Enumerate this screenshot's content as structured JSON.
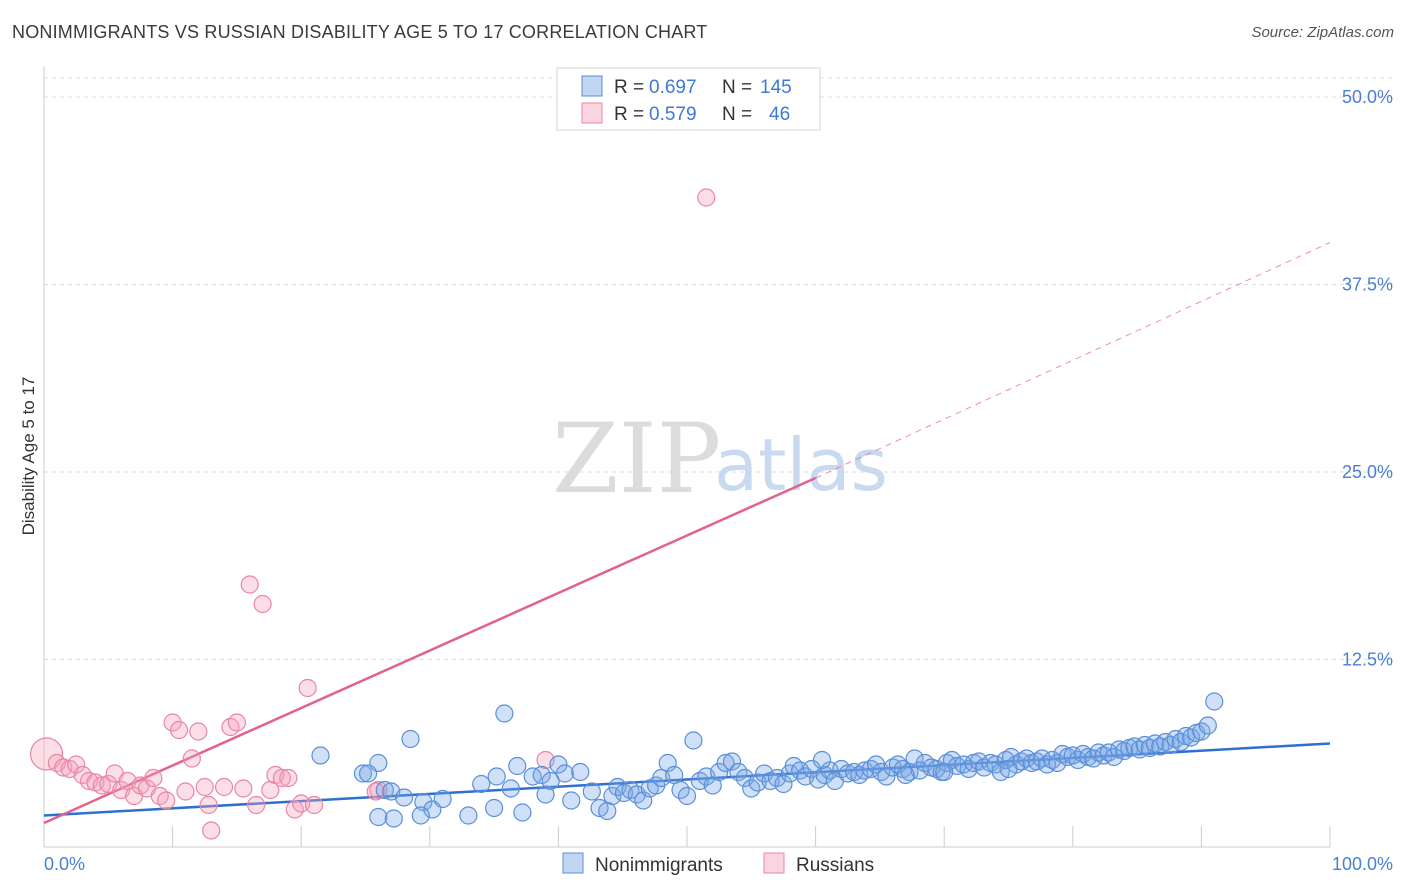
{
  "title": "NONIMMIGRANTS VS RUSSIAN DISABILITY AGE 5 TO 17 CORRELATION CHART",
  "source": "Source: ZipAtlas.com",
  "watermark": {
    "zip": "ZIP",
    "atlas": "atlas"
  },
  "colors": {
    "blue_fill": "rgba(120,165,230,0.35)",
    "blue_stroke": "#5a8fd8",
    "blue_line": "#2f6fd0",
    "pink_fill": "rgba(245,160,185,0.35)",
    "pink_stroke": "#e886a6",
    "pink_line": "#e2628c",
    "tick_text": "#4a7fd4",
    "grid": "#dddddd"
  },
  "legend": {
    "rows": [
      {
        "r_label": "R =",
        "r_value": "0.697",
        "n_label": "N =",
        "n_value": "145",
        "series": "blue"
      },
      {
        "r_label": "R =",
        "r_value": "0.579",
        "n_label": "N =",
        "n_value": "46",
        "series": "pink"
      }
    ]
  },
  "bottom_legend": {
    "items": [
      "Nonimmigrants",
      "Russians"
    ]
  },
  "chart_data": {
    "type": "scatter",
    "title": "NONIMMIGRANTS VS RUSSIAN DISABILITY AGE 5 TO 17 CORRELATION CHART",
    "xlabel": "",
    "ylabel": "Disability Age 5 to 17",
    "xlim": [
      0,
      100
    ],
    "ylim": [
      0,
      52
    ],
    "x_tick_labels": [
      "0.0%",
      "100.0%"
    ],
    "y_ticks": [
      12.5,
      25.0,
      37.5,
      50.0
    ],
    "y_tick_labels": [
      "12.5%",
      "25.0%",
      "37.5%",
      "50.0%"
    ],
    "grid": true,
    "legend_position": "top-center",
    "series": [
      {
        "name": "Nonimmigrants",
        "color": "blue",
        "r": 0.697,
        "n": 145,
        "trend": {
          "x": [
            0,
            100
          ],
          "y": [
            2.1,
            6.9
          ]
        },
        "points": [
          [
            21.5,
            6.1
          ],
          [
            24.8,
            4.9
          ],
          [
            25.2,
            4.9
          ],
          [
            26.0,
            5.6
          ],
          [
            26.5,
            3.8
          ],
          [
            27.0,
            3.7
          ],
          [
            28.0,
            3.3
          ],
          [
            28.5,
            7.2
          ],
          [
            29.5,
            3.0
          ],
          [
            30.2,
            2.5
          ],
          [
            31.0,
            3.2
          ],
          [
            26.0,
            2.0
          ],
          [
            27.2,
            1.9
          ],
          [
            29.3,
            2.1
          ],
          [
            33.0,
            2.1
          ],
          [
            34.0,
            4.2
          ],
          [
            35.0,
            2.6
          ],
          [
            35.2,
            4.7
          ],
          [
            35.8,
            8.9
          ],
          [
            36.3,
            3.9
          ],
          [
            36.8,
            5.4
          ],
          [
            37.2,
            2.3
          ],
          [
            38.0,
            4.7
          ],
          [
            38.7,
            4.8
          ],
          [
            39.0,
            3.5
          ],
          [
            39.4,
            4.4
          ],
          [
            40.0,
            5.5
          ],
          [
            40.5,
            4.9
          ],
          [
            41.0,
            3.1
          ],
          [
            41.7,
            5.0
          ],
          [
            42.6,
            3.7
          ],
          [
            43.2,
            2.6
          ],
          [
            43.8,
            2.4
          ],
          [
            44.2,
            3.4
          ],
          [
            44.6,
            4.0
          ],
          [
            45.1,
            3.6
          ],
          [
            45.6,
            3.8
          ],
          [
            46.1,
            3.5
          ],
          [
            46.6,
            3.1
          ],
          [
            47.1,
            3.9
          ],
          [
            47.6,
            4.1
          ],
          [
            48.0,
            4.6
          ],
          [
            48.5,
            5.6
          ],
          [
            49.0,
            4.8
          ],
          [
            49.5,
            3.8
          ],
          [
            50.0,
            3.4
          ],
          [
            50.5,
            7.1
          ],
          [
            51.0,
            4.4
          ],
          [
            51.5,
            4.7
          ],
          [
            52.0,
            4.1
          ],
          [
            52.5,
            5.0
          ],
          [
            53.0,
            5.6
          ],
          [
            53.5,
            5.7
          ],
          [
            54.0,
            5.0
          ],
          [
            54.5,
            4.6
          ],
          [
            55.0,
            3.9
          ],
          [
            55.5,
            4.3
          ],
          [
            56.0,
            4.9
          ],
          [
            56.5,
            4.4
          ],
          [
            57.0,
            4.6
          ],
          [
            57.5,
            4.2
          ],
          [
            58.0,
            4.9
          ],
          [
            58.3,
            5.4
          ],
          [
            58.8,
            5.1
          ],
          [
            59.2,
            4.7
          ],
          [
            59.7,
            5.2
          ],
          [
            60.2,
            4.5
          ],
          [
            60.7,
            4.8
          ],
          [
            61.1,
            5.1
          ],
          [
            61.5,
            4.4
          ],
          [
            62.0,
            5.2
          ],
          [
            62.5,
            4.9
          ],
          [
            63.0,
            5.0
          ],
          [
            63.4,
            4.8
          ],
          [
            63.8,
            5.1
          ],
          [
            64.3,
            5.2
          ],
          [
            64.7,
            5.5
          ],
          [
            65.1,
            5.0
          ],
          [
            65.5,
            4.7
          ],
          [
            66.0,
            5.3
          ],
          [
            66.4,
            5.5
          ],
          [
            66.8,
            5.2
          ],
          [
            67.3,
            5.0
          ],
          [
            67.7,
            5.9
          ],
          [
            68.1,
            5.1
          ],
          [
            68.5,
            5.6
          ],
          [
            69.0,
            5.3
          ],
          [
            69.4,
            5.2
          ],
          [
            69.8,
            5.0
          ],
          [
            70.2,
            5.6
          ],
          [
            70.6,
            5.8
          ],
          [
            71.0,
            5.4
          ],
          [
            71.5,
            5.5
          ],
          [
            71.9,
            5.2
          ],
          [
            72.3,
            5.6
          ],
          [
            72.7,
            5.7
          ],
          [
            73.1,
            5.3
          ],
          [
            73.6,
            5.6
          ],
          [
            74.0,
            5.5
          ],
          [
            74.4,
            5.0
          ],
          [
            74.8,
            5.8
          ],
          [
            75.2,
            6.0
          ],
          [
            75.6,
            5.5
          ],
          [
            76.0,
            5.7
          ],
          [
            76.4,
            5.9
          ],
          [
            76.8,
            5.6
          ],
          [
            77.2,
            5.7
          ],
          [
            77.6,
            5.9
          ],
          [
            78.0,
            5.5
          ],
          [
            78.4,
            5.8
          ],
          [
            78.8,
            5.6
          ],
          [
            79.2,
            6.2
          ],
          [
            79.6,
            6.0
          ],
          [
            80.0,
            6.1
          ],
          [
            80.4,
            5.8
          ],
          [
            80.8,
            6.2
          ],
          [
            81.2,
            6.0
          ],
          [
            81.6,
            5.9
          ],
          [
            82.0,
            6.3
          ],
          [
            82.4,
            6.1
          ],
          [
            82.8,
            6.3
          ],
          [
            83.2,
            6.0
          ],
          [
            83.6,
            6.5
          ],
          [
            84.0,
            6.4
          ],
          [
            84.4,
            6.6
          ],
          [
            84.8,
            6.7
          ],
          [
            85.2,
            6.5
          ],
          [
            85.6,
            6.8
          ],
          [
            86.0,
            6.6
          ],
          [
            86.4,
            6.9
          ],
          [
            86.8,
            6.7
          ],
          [
            87.2,
            7.0
          ],
          [
            87.6,
            6.8
          ],
          [
            88.0,
            7.2
          ],
          [
            88.4,
            7.0
          ],
          [
            88.8,
            7.4
          ],
          [
            89.2,
            7.3
          ],
          [
            89.6,
            7.6
          ],
          [
            90.0,
            7.7
          ],
          [
            90.5,
            8.1
          ],
          [
            91.0,
            9.7
          ],
          [
            60.5,
            5.8
          ],
          [
            67.0,
            4.8
          ],
          [
            70.0,
            5.0
          ],
          [
            75.0,
            5.2
          ]
        ]
      },
      {
        "name": "Russians",
        "color": "pink",
        "r": 0.579,
        "n": 46,
        "trend": {
          "x": [
            0,
            60
          ],
          "y": [
            1.6,
            24.6
          ]
        },
        "trend_dashed": {
          "x": [
            60,
            100
          ],
          "y": [
            24.6,
            40.3
          ]
        },
        "points": [
          [
            0.2,
            6.2
          ],
          [
            1.0,
            5.6
          ],
          [
            1.5,
            5.3
          ],
          [
            2.0,
            5.2
          ],
          [
            2.5,
            5.5
          ],
          [
            3.0,
            4.8
          ],
          [
            3.5,
            4.4
          ],
          [
            4.0,
            4.3
          ],
          [
            4.5,
            4.1
          ],
          [
            5.0,
            4.2
          ],
          [
            5.5,
            4.9
          ],
          [
            6.0,
            3.8
          ],
          [
            6.5,
            4.4
          ],
          [
            7.0,
            3.4
          ],
          [
            7.5,
            4.1
          ],
          [
            8.0,
            3.9
          ],
          [
            8.5,
            4.6
          ],
          [
            9.0,
            3.4
          ],
          [
            9.5,
            3.1
          ],
          [
            10.0,
            8.3
          ],
          [
            10.5,
            7.8
          ],
          [
            11.0,
            3.7
          ],
          [
            11.5,
            5.9
          ],
          [
            12.0,
            7.7
          ],
          [
            12.5,
            4.0
          ],
          [
            12.8,
            2.8
          ],
          [
            13.0,
            1.1
          ],
          [
            14.0,
            4.0
          ],
          [
            14.5,
            8.0
          ],
          [
            15.0,
            8.3
          ],
          [
            15.5,
            3.9
          ],
          [
            16.0,
            17.5
          ],
          [
            16.5,
            2.8
          ],
          [
            17.0,
            16.2
          ],
          [
            17.6,
            3.8
          ],
          [
            18.0,
            4.8
          ],
          [
            18.5,
            4.6
          ],
          [
            19.0,
            4.6
          ],
          [
            19.5,
            2.5
          ],
          [
            20.0,
            2.9
          ],
          [
            20.5,
            10.6
          ],
          [
            21.0,
            2.8
          ],
          [
            26.0,
            3.8
          ],
          [
            39.0,
            5.8
          ],
          [
            51.5,
            43.3
          ],
          [
            25.8,
            3.7
          ]
        ]
      }
    ]
  }
}
